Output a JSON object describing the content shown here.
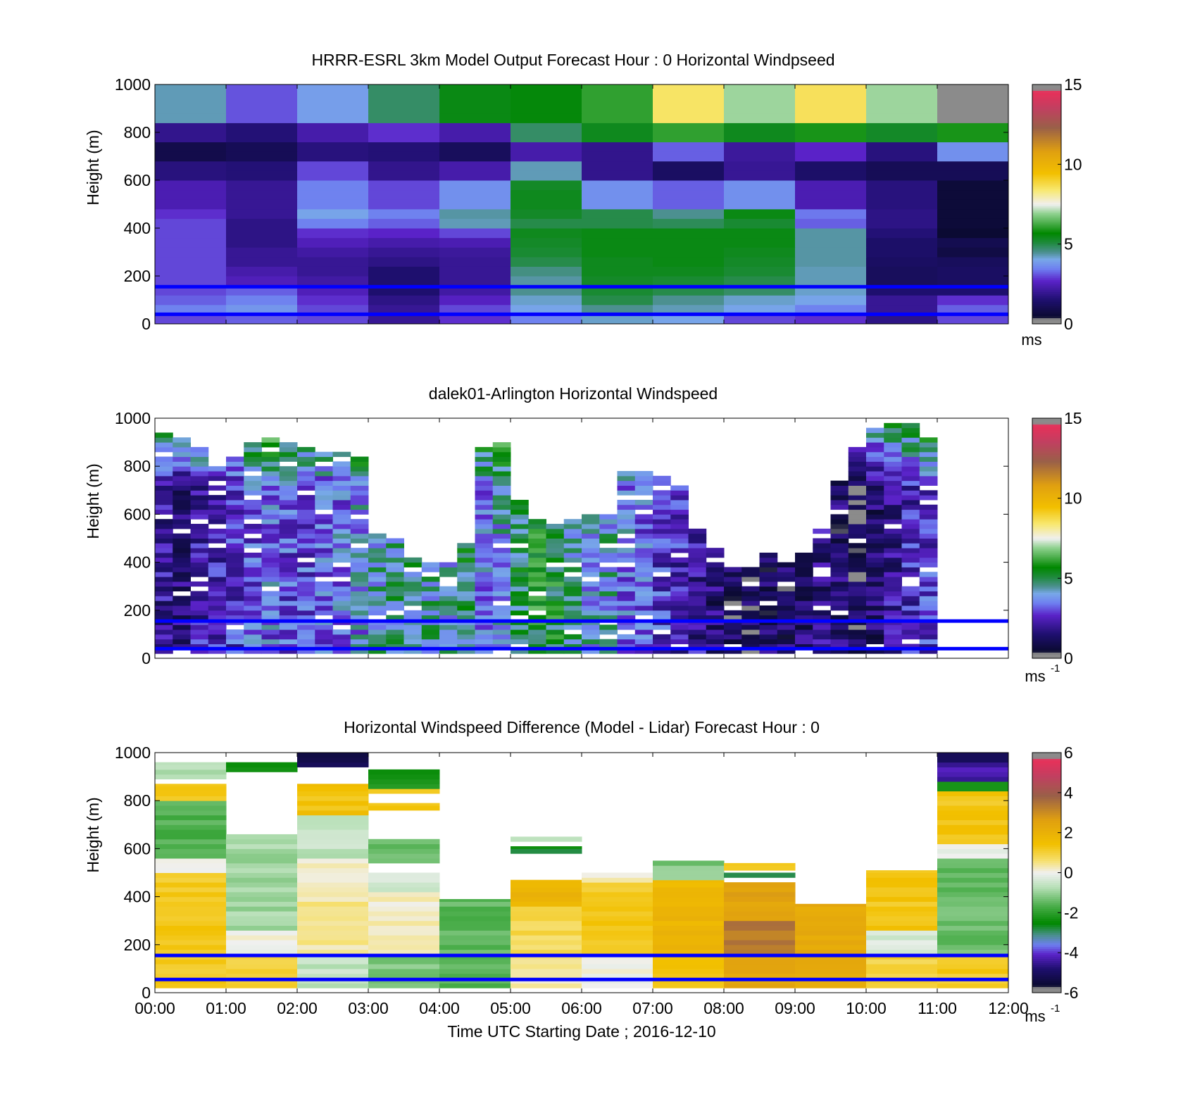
{
  "figure": {
    "xlabel": "Time UTC  Starting Date ; 2016-12-10",
    "x_ticks": [
      "00:00",
      "01:00",
      "02:00",
      "03:00",
      "04:00",
      "05:00",
      "06:00",
      "07:00",
      "08:00",
      "09:00",
      "10:00",
      "11:00",
      "12:00"
    ]
  },
  "chart_data": [
    {
      "type": "heatmap",
      "title": "HRRR-ESRL 3km Model Output   Forecast Hour : 0 Horizontal Windpseed",
      "ylabel": "Height (m)",
      "ylim": [
        0,
        1000
      ],
      "y_ticks": [
        "0",
        "200",
        "400",
        "600",
        "800",
        "1000"
      ],
      "x_range_hours": [
        0,
        12
      ],
      "colorbar": {
        "ticks": [
          "0",
          "5",
          "10",
          "15"
        ],
        "range": [
          0,
          15
        ],
        "unit": "ms",
        "unit_sup": ""
      },
      "reference_lines_m": [
        40,
        155
      ],
      "time_bin_hours": 1,
      "heights_m": [
        20,
        60,
        100,
        140,
        180,
        220,
        260,
        300,
        340,
        380,
        420,
        460,
        500,
        540,
        580,
        620,
        660,
        700,
        740,
        780,
        820,
        860,
        900,
        950
      ],
      "values": [
        [
          3.0,
          3.2,
          3.0,
          2.0,
          2.8,
          3.5,
          4.2,
          4.0,
          3.0,
          2.8,
          1.8,
          3.0
        ],
        [
          3.5,
          3.8,
          3.0,
          2.0,
          3.0,
          4.0,
          4.5,
          4.3,
          4.0,
          3.5,
          2.0,
          3.2
        ],
        [
          3.2,
          3.5,
          2.8,
          1.8,
          2.6,
          4.2,
          5.0,
          4.5,
          4.2,
          4.0,
          2.0,
          2.8
        ],
        [
          3.0,
          3.2,
          2.5,
          1.5,
          2.2,
          4.5,
          5.2,
          5.0,
          4.8,
          4.2,
          1.5,
          1.5
        ],
        [
          3.0,
          2.5,
          2.2,
          1.5,
          2.0,
          4.4,
          5.3,
          5.2,
          5.0,
          4.3,
          1.2,
          1.3
        ],
        [
          3.0,
          2.3,
          2.0,
          1.5,
          2.0,
          4.6,
          5.4,
          5.4,
          5.2,
          4.3,
          1.2,
          1.3
        ],
        [
          3.0,
          2.0,
          2.0,
          1.8,
          2.0,
          5.0,
          5.4,
          5.5,
          5.3,
          4.4,
          1.3,
          1.2
        ],
        [
          3.0,
          2.0,
          2.2,
          2.0,
          2.1,
          5.2,
          5.5,
          5.5,
          5.4,
          4.4,
          1.4,
          0.8
        ],
        [
          3.0,
          1.8,
          2.5,
          2.3,
          2.4,
          5.3,
          5.5,
          5.5,
          5.5,
          4.4,
          1.4,
          1.0
        ],
        [
          3.0,
          1.8,
          2.8,
          2.7,
          3.0,
          5.4,
          5.5,
          5.5,
          5.5,
          4.4,
          1.6,
          0.5
        ],
        [
          3.0,
          1.8,
          3.5,
          3.2,
          4.3,
          5.0,
          5.0,
          4.9,
          5.2,
          3.2,
          1.8,
          0.6
        ],
        [
          2.8,
          2.0,
          4.0,
          3.5,
          4.4,
          5.3,
          5.0,
          4.5,
          5.5,
          3.4,
          1.8,
          0.6
        ],
        [
          2.4,
          2.0,
          3.5,
          3.0,
          3.7,
          5.4,
          3.7,
          3.2,
          3.7,
          2.4,
          1.7,
          0.6
        ],
        [
          2.4,
          2.0,
          3.5,
          3.0,
          3.7,
          5.4,
          3.7,
          3.2,
          3.7,
          2.4,
          1.7,
          0.6
        ],
        [
          2.4,
          2.0,
          3.5,
          3.0,
          3.7,
          5.3,
          3.7,
          3.2,
          3.7,
          2.4,
          1.7,
          0.6
        ],
        [
          1.7,
          1.6,
          3.0,
          1.9,
          2.3,
          4.3,
          1.9,
          1.3,
          2.0,
          1.4,
          1.1,
          1.1
        ],
        [
          1.7,
          1.6,
          3.0,
          1.9,
          2.3,
          4.3,
          1.9,
          1.3,
          2.0,
          1.4,
          1.1,
          1.1
        ],
        [
          0.9,
          1.1,
          1.7,
          1.6,
          1.2,
          2.3,
          1.9,
          3.2,
          2.1,
          2.7,
          1.7,
          3.7
        ],
        [
          0.9,
          1.1,
          1.7,
          1.6,
          1.2,
          2.3,
          1.9,
          3.2,
          2.1,
          2.7,
          1.7,
          3.7
        ],
        [
          1.9,
          1.6,
          2.3,
          2.8,
          2.3,
          4.8,
          5.4,
          6.1,
          5.4,
          5.9,
          5.3,
          5.9
        ],
        [
          1.9,
          1.6,
          2.3,
          2.8,
          2.3,
          4.8,
          5.4,
          6.1,
          5.4,
          5.9,
          5.3,
          5.9
        ],
        [
          4.3,
          3.1,
          3.9,
          4.8,
          5.5,
          5.6,
          6.1,
          8.5,
          7.0,
          8.6,
          7.0,
          15.2
        ],
        [
          4.3,
          3.1,
          3.9,
          4.8,
          5.5,
          5.6,
          6.1,
          8.5,
          7.0,
          8.6,
          7.0,
          15.2
        ],
        [
          4.3,
          3.1,
          3.9,
          4.8,
          5.5,
          5.6,
          6.1,
          8.5,
          7.0,
          8.6,
          7.0,
          15.2
        ]
      ]
    },
    {
      "type": "heatmap",
      "title": "dalek01-Arlington  Horizontal Windspeed",
      "ylabel": "Height (m)",
      "ylim": [
        0,
        1000
      ],
      "y_ticks": [
        "0",
        "200",
        "400",
        "600",
        "800",
        "1000"
      ],
      "x_range_hours": [
        0,
        12
      ],
      "colorbar": {
        "ticks": [
          "0",
          "5",
          "10",
          "15"
        ],
        "range": [
          0,
          15
        ],
        "unit": "ms",
        "unit_sup": "-1"
      },
      "reference_lines_m": [
        40,
        155
      ],
      "time_bin_hours": 0.25,
      "height_bin_m": 20,
      "top_m": [
        930,
        910,
        880,
        800,
        840,
        900,
        910,
        900,
        870,
        860,
        860,
        840,
        520,
        500,
        420,
        390,
        400,
        470,
        880,
        890,
        660,
        580,
        560,
        580,
        600,
        600,
        770,
        770,
        760,
        720,
        530,
        450,
        370,
        370,
        440,
        390,
        430,
        530,
        730,
        870,
        960,
        970,
        980,
        920
      ],
      "typical_mps": [
        2.0,
        1.8,
        2.3,
        2.4,
        2.8,
        3.2,
        3.4,
        3.1,
        3.0,
        3.2,
        3.5,
        3.8,
        4.3,
        4.5,
        4.6,
        4.4,
        4.2,
        4.8,
        3.5,
        4.0,
        5.0,
        5.5,
        5.3,
        4.5,
        4.0,
        4.2,
        3.5,
        3.2,
        2.8,
        2.5,
        2.0,
        1.5,
        1.0,
        1.0,
        1.2,
        1.3,
        1.5,
        1.8,
        1.4,
        1.0,
        1.5,
        2.0,
        2.5,
        2.8
      ]
    },
    {
      "type": "heatmap",
      "title": "Horizontal Windspeed Difference (Model - Lidar) Forecast Hour : 0",
      "ylabel": "Height (m)",
      "ylim": [
        0,
        1000
      ],
      "y_ticks": [
        "0",
        "200",
        "400",
        "600",
        "800",
        "1000"
      ],
      "x_range_hours": [
        0,
        12
      ],
      "colorbar": {
        "ticks": [
          "-6",
          "-4",
          "-2",
          "0",
          "2",
          "4",
          "6"
        ],
        "range": [
          -6,
          6
        ],
        "unit": "ms",
        "unit_sup": "-1"
      },
      "reference_lines_m": [
        55,
        155
      ],
      "time_bin_hours": 1,
      "height_bin_m": 20,
      "segments": [
        [
          [
            20,
            500,
            1.2
          ],
          [
            500,
            560,
            0.0
          ],
          [
            560,
            800,
            -1.6
          ],
          [
            800,
            870,
            1.2
          ],
          [
            890,
            960,
            -0.8
          ]
        ],
        [
          [
            20,
            160,
            1.0
          ],
          [
            160,
            260,
            0.0
          ],
          [
            260,
            660,
            -0.9
          ],
          [
            920,
            960,
            -2.4
          ]
        ],
        [
          [
            20,
            160,
            -0.6
          ],
          [
            160,
            420,
            0.4
          ],
          [
            420,
            560,
            0.2
          ],
          [
            560,
            740,
            -0.6
          ],
          [
            740,
            870,
            1.4
          ],
          [
            940,
            1000,
            -5.2
          ]
        ],
        [
          [
            20,
            160,
            -1.2
          ],
          [
            160,
            420,
            0.2
          ],
          [
            420,
            500,
            -0.4
          ],
          [
            540,
            640,
            -1.4
          ],
          [
            760,
            790,
            1.3
          ],
          [
            830,
            850,
            1.4
          ],
          [
            850,
            930,
            -2.2
          ]
        ],
        [
          [
            20,
            390,
            -1.5
          ]
        ],
        [
          [
            20,
            160,
            0.3
          ],
          [
            160,
            360,
            0.8
          ],
          [
            360,
            470,
            1.8
          ],
          [
            580,
            610,
            -2.6
          ],
          [
            630,
            650,
            -0.5
          ]
        ],
        [
          [
            20,
            160,
            0.1
          ],
          [
            160,
            460,
            1.2
          ],
          [
            460,
            500,
            0.1
          ]
        ],
        [
          [
            20,
            160,
            1.5
          ],
          [
            160,
            470,
            1.8
          ],
          [
            470,
            550,
            -1.2
          ]
        ],
        [
          [
            20,
            160,
            2.4
          ],
          [
            160,
            300,
            3.4
          ],
          [
            300,
            460,
            2.5
          ],
          [
            480,
            500,
            -2.6
          ],
          [
            510,
            540,
            1.2
          ]
        ],
        [
          [
            20,
            160,
            2.4
          ],
          [
            160,
            370,
            2.3
          ]
        ],
        [
          [
            20,
            160,
            1.0
          ],
          [
            160,
            260,
            -0.3
          ],
          [
            260,
            510,
            1.3
          ]
        ],
        [
          [
            20,
            160,
            1.2
          ],
          [
            160,
            560,
            -1.4
          ],
          [
            560,
            620,
            0.0
          ],
          [
            620,
            840,
            1.3
          ],
          [
            840,
            880,
            -2.4
          ],
          [
            880,
            960,
            -4.3
          ],
          [
            960,
            1000,
            -5.2
          ]
        ]
      ]
    }
  ]
}
